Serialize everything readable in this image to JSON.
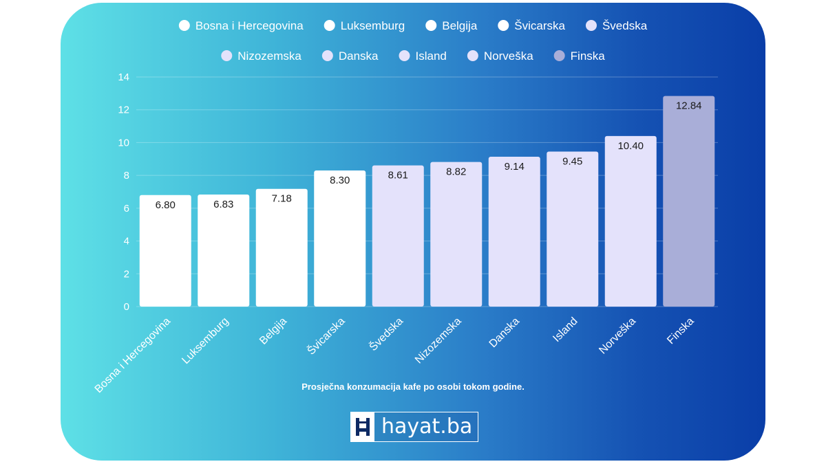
{
  "chart_data": {
    "type": "bar",
    "categories": [
      "Bosna i Hercegovina",
      "Luksemburg",
      "Belgija",
      "Švicarska",
      "Švedska",
      "Nizozemska",
      "Danska",
      "Island",
      "Norveška",
      "Finska"
    ],
    "values": [
      6.8,
      6.83,
      7.18,
      8.3,
      8.61,
      8.82,
      9.14,
      9.45,
      10.4,
      12.84
    ],
    "value_labels": [
      "6.80",
      "6.83",
      "7.18",
      "8.30",
      "8.61",
      "8.82",
      "9.14",
      "9.45",
      "10.40",
      "12.84"
    ],
    "bar_colors": [
      "#ffffff",
      "#ffffff",
      "#ffffff",
      "#ffffff",
      "#e4e2fb",
      "#e4e2fb",
      "#e4e2fb",
      "#e4e2fb",
      "#e4e2fb",
      "#a9aed8"
    ],
    "ylim": [
      0,
      14
    ],
    "yticks": [
      0,
      2,
      4,
      6,
      8,
      10,
      12,
      14
    ],
    "grid": true,
    "legend_position": "top",
    "xlabel": "",
    "ylabel": ""
  },
  "caption": "Prosječna konzumacija kafe po osobi tokom godine.",
  "logo": {
    "icon": "hayat-logo-icon",
    "text": "hayat.ba"
  },
  "colors": {
    "gradient_start": "#5ee0e6",
    "gradient_end": "#0a3ea8",
    "bar_group1": "#ffffff",
    "bar_group2": "#e4e2fb",
    "bar_highlight": "#a9aed8"
  }
}
